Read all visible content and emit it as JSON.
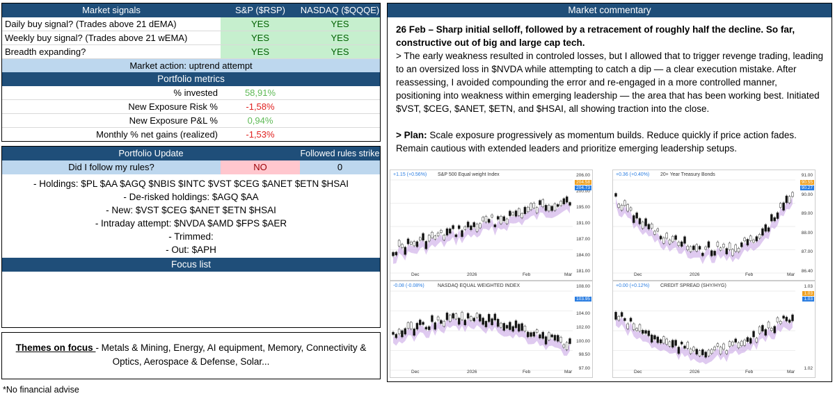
{
  "signals": {
    "header": [
      "Market signals",
      "S&P ($RSP)",
      "NASDAQ ($QQQE)"
    ],
    "rows": [
      {
        "label": "Daily buy signal? (Trades above 21 dEMA)",
        "sp": "YES",
        "nq": "YES"
      },
      {
        "label": "Weekly buy signal? (Trades above 21 wEMA)",
        "sp": "YES",
        "nq": "YES"
      },
      {
        "label": "Breadth expanding?",
        "sp": "YES",
        "nq": "YES"
      }
    ],
    "market_action": "Market action: uptrend attempt"
  },
  "metrics": {
    "title": "Portfolio metrics",
    "items": [
      {
        "label": "% invested",
        "value": "58,91%",
        "tone": "pos"
      },
      {
        "label": "New Exposure Risk %",
        "value": "-1,58%",
        "tone": "neg"
      },
      {
        "label": "New Exposure P&L %",
        "value": "0,94%",
        "tone": "pos"
      },
      {
        "label": "Monthly % net gains (realized)",
        "value": "-1,53%",
        "tone": "neg"
      }
    ]
  },
  "update": {
    "title": "Portfolio Update",
    "strike_label": "Followed rules strike",
    "question": "Did I follow my rules?",
    "answer": "NO",
    "strike": "0",
    "lines": [
      "- Holdings: $PL $AA $AGQ $NBIS $INTC $VST $CEG $ANET $ETN $HSAI",
      "- De-risked holdings: $AGQ $AA",
      "- New: $VST $CEG $ANET $ETN $HSAI",
      "- Intraday attempt:  $NVDA $AMD $FPS $AER",
      "- Trimmed:",
      "- Out: $APH"
    ],
    "focus_title": "Focus list"
  },
  "themes": {
    "label": "Themes on focus ",
    "text": "- Metals & Mining, Energy, AI equipment, Memory, Connectivity & Optics, Aerospace & Defense, Solar..."
  },
  "disclaimer": "*No financial advise",
  "commentary": {
    "title": "Market commentary",
    "headline": "26 Feb – Sharp initial selloff, followed by a retracement of roughly half the decline. So far, constructive out of big and large cap tech.",
    "body": "> The early weakness resulted in controled losses, but I allowed that to trigger revenge trading, leading to an oversized loss in $NVDA while attempting to catch a dip — a clear execution mistake. After reassessing, I avoided compounding the error and re-engaged in a more controlled manner, positioning into weakness within emerging leadership — the area that has been working best. Initiated $VST, $CEG, $ANET, $ETN, and $HSAI, all showing traction into the close.",
    "plan_label": "> Plan:",
    "plan_text": " Scale exposure progressively as momentum builds. Reduce quickly if price action fades. Remain cautious with extended leaders and prioritize emerging leadership setups."
  },
  "charts": [
    {
      "id": "ch1",
      "title": "S&P 500 Equal weight Index",
      "change": "+1.15 (+0.56%)",
      "yticks": [
        "206.00",
        "200.00",
        "195.00",
        "191.00",
        "187.00",
        "184.00",
        "181.00"
      ],
      "last": "204.73",
      "pre": "204.58",
      "xticks": [
        "Dec",
        "2026",
        "Feb",
        "Mar"
      ],
      "color": "#2a7de1",
      "trend": "up"
    },
    {
      "id": "ch2",
      "title": "20+ Year Treasury Bonds",
      "change": "+0.36 (+0.40%)",
      "yticks": [
        "91.00",
        "90.00",
        "89.00",
        "88.00",
        "87.00",
        "86.40"
      ],
      "last": "90.27",
      "pre": "90.55",
      "xticks": [
        "Dec",
        "2026",
        "Feb",
        "Mar"
      ],
      "color": "#2a7de1",
      "trend": "u"
    },
    {
      "id": "ch3",
      "title": "NASDAQ EQUAL WEIGHTED INDEX",
      "change": "-0.08 (-0.08%)",
      "yticks": [
        "108.00",
        "106.00",
        "104.00",
        "102.00",
        "100.00",
        "98.50",
        "97.00"
      ],
      "last": "103.95",
      "pre": "",
      "xticks": [
        "Dec",
        "2026",
        "Feb",
        "Mar"
      ],
      "color": "#2a7de1",
      "trend": "flat"
    },
    {
      "id": "ch4",
      "title": "CREDIT SPREAD (SHY/HYG)",
      "change": "+0.00 (+0.12%)",
      "yticks": [
        "1.03",
        "1.02"
      ],
      "last": "1.03",
      "pre": "1.03",
      "xticks": [
        "Dec",
        "2026",
        "Feb",
        "Mar"
      ],
      "color": "#2a7de1",
      "trend": "down"
    }
  ]
}
